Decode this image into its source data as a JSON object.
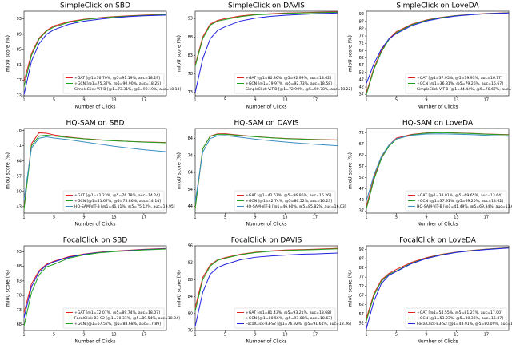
{
  "chart_data": [
    {
      "type": "line",
      "title": "SimpleClick on SBD",
      "x_label": "Number of Clicks",
      "y_label": "mIoU score (%)",
      "x": [
        1,
        2,
        3,
        4,
        5,
        7,
        9,
        11,
        13,
        15,
        17,
        20
      ],
      "xlim": [
        1,
        20
      ],
      "xticks": [
        1,
        5,
        9,
        13,
        17
      ],
      "ylim": [
        73,
        95
      ],
      "yticks": [
        73,
        77,
        81,
        85,
        89,
        93
      ],
      "legend": "lower right",
      "series": [
        {
          "name": "+GAT [@1=76.70%, @5=91.19%, auc=18.29]",
          "color": "#e02020",
          "values": [
            76.7,
            84,
            88,
            90,
            91.19,
            92.3,
            92.9,
            93.3,
            93.6,
            93.8,
            94,
            94.2
          ]
        },
        {
          "name": "+GCN [@1=75.37%, @5=90.90%, auc=18.25]",
          "color": "#20a020",
          "values": [
            75.37,
            83.5,
            87.7,
            89.8,
            90.9,
            92.1,
            92.8,
            93.2,
            93.5,
            93.7,
            93.9,
            94.1
          ]
        },
        {
          "name": "SimpleClick-ViT-B [@1=73.31%, @5=90.19%, auc=18.13]",
          "color": "#2020e0",
          "values": [
            73.31,
            82,
            86.5,
            89,
            90.19,
            91.6,
            92.4,
            92.9,
            93.3,
            93.6,
            93.8,
            94.0
          ]
        }
      ]
    },
    {
      "type": "line",
      "title": "SimpleClick on DAVIS",
      "x_label": "Number of Clicks",
      "y_label": "mIoU score (%)",
      "x": [
        1,
        2,
        3,
        4,
        5,
        7,
        9,
        11,
        13,
        15,
        17,
        20
      ],
      "xlim": [
        1,
        20
      ],
      "xticks": [
        1,
        5,
        9,
        13,
        17
      ],
      "ylim": [
        72,
        95
      ],
      "yticks": [
        73,
        78,
        83,
        88,
        93
      ],
      "legend": "lower right",
      "series": [
        {
          "name": "+GAT [@1=80.36%, @5=92.99%, auc=18.62]",
          "color": "#e02020",
          "values": [
            80.36,
            88,
            91.5,
            92.5,
            92.99,
            93.7,
            94.1,
            94.3,
            94.5,
            94.6,
            94.7,
            94.8
          ]
        },
        {
          "name": "+GCN [@1=79.97%, @5=92.73%, auc=18.58]",
          "color": "#20a020",
          "values": [
            79.97,
            87.5,
            91.2,
            92.3,
            92.73,
            93.5,
            94,
            94.2,
            94.4,
            94.5,
            94.6,
            94.7
          ]
        },
        {
          "name": "SimpleClick-ViT-B [@1=72.90%, @5=90.78%, auc=18.22]",
          "color": "#2020e0",
          "values": [
            72.9,
            82,
            87.5,
            89.8,
            90.78,
            92.3,
            93.1,
            93.6,
            93.9,
            94.1,
            94.3,
            94.5
          ]
        }
      ]
    },
    {
      "type": "line",
      "title": "SimpleClick on LoveDA",
      "x_label": "Number of Clicks",
      "y_label": "mIoU score (%)",
      "x": [
        1,
        2,
        3,
        4,
        5,
        7,
        9,
        11,
        13,
        15,
        17,
        20
      ],
      "xlim": [
        1,
        20
      ],
      "xticks": [
        1,
        5,
        9,
        13,
        17
      ],
      "ylim": [
        36,
        94
      ],
      "yticks": [
        37,
        42,
        47,
        52,
        57,
        62,
        67,
        72,
        77,
        82,
        87,
        92
      ],
      "legend": "lower right",
      "series": [
        {
          "name": "+GAT [@1=37.95%, @5=79.93%, auc=16.77]",
          "color": "#e02020",
          "values": [
            37.95,
            55,
            67,
            75,
            79.93,
            85,
            88,
            89.8,
            91,
            91.8,
            92.4,
            93
          ]
        },
        {
          "name": "+GCN [@1=36.81%, @5=79.26%, auc=16.67]",
          "color": "#20a020",
          "values": [
            36.81,
            54,
            66,
            74.5,
            79.26,
            84.6,
            87.7,
            89.6,
            90.9,
            91.7,
            92.3,
            92.9
          ]
        },
        {
          "name": "SimpleClick-ViT-B [@1=44.44%, @5=78.67%, auc=16.66]",
          "color": "#2020e0",
          "values": [
            44.44,
            58,
            68,
            75,
            78.67,
            84,
            87.3,
            89.3,
            90.7,
            91.6,
            92.2,
            92.8
          ]
        }
      ]
    },
    {
      "type": "line",
      "title": "HQ-SAM on SBD",
      "x_label": "Number of Clicks",
      "y_label": "mIoU score (%)",
      "x": [
        1,
        2,
        3,
        4,
        5,
        7,
        9,
        11,
        13,
        15,
        17,
        20
      ],
      "xlim": [
        1,
        20
      ],
      "xticks": [
        1,
        5,
        9,
        13,
        17
      ],
      "ylim": [
        40,
        79
      ],
      "yticks": [
        43,
        50,
        57,
        64,
        71,
        78
      ],
      "legend": "lower right",
      "series": [
        {
          "name": "+GAT [@1=42.23%, @5=76.78%, auc=14.24]",
          "color": "#e02020",
          "values": [
            42.23,
            72,
            77,
            76.78,
            76,
            75,
            74.3,
            73.8,
            73.4,
            73,
            72.8,
            72.5
          ]
        },
        {
          "name": "+GCN [@1=41.67%, @5=75.86%, auc=14.14]",
          "color": "#20a020",
          "values": [
            41.67,
            71,
            75.5,
            75.86,
            75.5,
            74.8,
            74.2,
            73.7,
            73.3,
            73,
            72.7,
            72.4
          ]
        },
        {
          "name": "HQ-SAM-ViT-B [@1=46.11%, @5=75.12%, auc=13.95]",
          "color": "#3a8fc0",
          "values": [
            46.11,
            70,
            74.5,
            75.12,
            74.6,
            73.8,
            72.8,
            71.8,
            70.8,
            70,
            69.2,
            68.3
          ]
        }
      ]
    },
    {
      "type": "line",
      "title": "HQ-SAM on DAVIS",
      "x_label": "Number of Clicks",
      "y_label": "mIoU score (%)",
      "x": [
        1,
        2,
        3,
        4,
        5,
        7,
        9,
        11,
        13,
        15,
        17,
        20
      ],
      "xlim": [
        1,
        20
      ],
      "xticks": [
        1,
        5,
        9,
        13,
        17
      ],
      "ylim": [
        40,
        90
      ],
      "yticks": [
        44,
        54,
        64,
        74,
        84
      ],
      "legend": "lower right",
      "series": [
        {
          "name": "+GAT [@1=42.67%, @5=86.86%, auc=16.26]",
          "color": "#e02020",
          "values": [
            42.67,
            78,
            85.5,
            86.8,
            86.86,
            86,
            85.2,
            84.6,
            84.1,
            83.8,
            83.5,
            83.2
          ]
        },
        {
          "name": "+GCN [@1=42.74%, @5=86.52%, auc=16.23]",
          "color": "#20a020",
          "values": [
            42.74,
            78,
            85.3,
            86.5,
            86.52,
            85.8,
            85.1,
            84.5,
            84,
            83.7,
            83.4,
            83.1
          ]
        },
        {
          "name": "HQ-SAM-ViT-B [@1=46.60%, @5=85.82%, auc=16.03]",
          "color": "#3a8fc0",
          "values": [
            46.6,
            76,
            84,
            85.7,
            85.82,
            84.8,
            83.7,
            82.8,
            82,
            81.3,
            80.6,
            79.8
          ]
        }
      ]
    },
    {
      "type": "line",
      "title": "HQ-SAM on LoveDA",
      "x_label": "Number of Clicks",
      "y_label": "mIoU score (%)",
      "x": [
        1,
        2,
        3,
        4,
        5,
        7,
        9,
        11,
        13,
        15,
        17,
        20
      ],
      "xlim": [
        1,
        20
      ],
      "xticks": [
        1,
        5,
        9,
        13,
        17
      ],
      "ylim": [
        36,
        74
      ],
      "yticks": [
        37,
        42,
        47,
        52,
        57,
        62,
        67,
        72
      ],
      "legend": "lower right",
      "series": [
        {
          "name": "+GAT [@1=38.91%, @5=69.65%, auc=13.64]",
          "color": "#e02020",
          "values": [
            38.91,
            52,
            61,
            66.5,
            69.65,
            71.3,
            72,
            72.2,
            72,
            71.8,
            71.5,
            71.2
          ]
        },
        {
          "name": "+GCN [@1=37.91%, @5=69.20%, auc=13.62]",
          "color": "#20a020",
          "values": [
            37.91,
            51,
            60.5,
            66,
            69.2,
            71.1,
            71.9,
            72.1,
            71.9,
            71.7,
            71.4,
            71.1
          ]
        },
        {
          "name": "HQ-SAM-ViT-B [@1=41.49%, @5=69.34%, auc=13.60]",
          "color": "#3a8fc0",
          "values": [
            41.49,
            53,
            61.5,
            66.5,
            69.34,
            70.9,
            71.5,
            71.6,
            71.4,
            71.2,
            70.9,
            70.5
          ]
        }
      ]
    },
    {
      "type": "line",
      "title": "FocalClick on SBD",
      "x_label": "Number of Clicks",
      "y_label": "mIoU score (%)",
      "x": [
        1,
        2,
        3,
        4,
        5,
        7,
        9,
        11,
        13,
        15,
        17,
        20
      ],
      "xlim": [
        1,
        20
      ],
      "xticks": [
        1,
        5,
        9,
        13,
        17
      ],
      "ylim": [
        66,
        95
      ],
      "yticks": [
        68,
        73,
        78,
        83,
        88,
        93
      ],
      "legend": "lower right",
      "series": [
        {
          "name": "+GAT [@1=72.07%, @5=89.74%, auc=18.07]",
          "color": "#e02020",
          "values": [
            72.07,
            82,
            86.5,
            88.7,
            89.74,
            91.3,
            92.2,
            92.8,
            93.2,
            93.5,
            93.8,
            94.1
          ]
        },
        {
          "name": "FocalClick-B3-S2 [@1=70.31%, @5=89.54%, auc=18.04]",
          "color": "#2020e0",
          "values": [
            70.31,
            81,
            86,
            88.4,
            89.54,
            91.1,
            92.1,
            92.7,
            93.1,
            93.4,
            93.7,
            94
          ]
        },
        {
          "name": "+GCN [@1=67.52%, @5=88.68%, auc=17.89]",
          "color": "#20a020",
          "values": [
            67.52,
            79,
            85,
            87.8,
            88.68,
            90.8,
            91.9,
            92.6,
            93,
            93.3,
            93.6,
            93.9
          ]
        }
      ]
    },
    {
      "type": "line",
      "title": "FocalClick on DAVIS",
      "x_label": "Number of Clicks",
      "y_label": "mIoU score (%)",
      "x": [
        1,
        2,
        3,
        4,
        5,
        7,
        9,
        11,
        13,
        15,
        17,
        20
      ],
      "xlim": [
        1,
        20
      ],
      "xticks": [
        1,
        5,
        9,
        13,
        17
      ],
      "ylim": [
        76,
        96
      ],
      "yticks": [
        76,
        80,
        84,
        88,
        92,
        96
      ],
      "legend": "lower right",
      "series": [
        {
          "name": "+GAT [@1=81.43%, @5=93.21%, auc=18.68]",
          "color": "#e02020",
          "values": [
            81.43,
            88.5,
            91.5,
            92.7,
            93.21,
            94,
            94.5,
            94.8,
            95,
            95.1,
            95.2,
            95.4
          ]
        },
        {
          "name": "+GCN [@1=80.56%, @5=93.08%, auc=18.63]",
          "color": "#20a020",
          "values": [
            80.56,
            88,
            91.2,
            92.6,
            93.08,
            93.9,
            94.4,
            94.7,
            94.9,
            95,
            95.1,
            95.3
          ]
        },
        {
          "name": "FocalClick-B3-S2 [@1=76.92%, @5=91.61%, auc=18.36]",
          "color": "#2020e0",
          "values": [
            76.92,
            85,
            89.3,
            90.9,
            91.61,
            92.7,
            93.3,
            93.6,
            93.8,
            94,
            94.1,
            94.3
          ]
        }
      ]
    },
    {
      "type": "line",
      "title": "FocalClick on LoveDA",
      "x_label": "Number of Clicks",
      "y_label": "mIoU score (%)",
      "x": [
        1,
        2,
        3,
        4,
        5,
        7,
        9,
        11,
        13,
        15,
        17,
        20
      ],
      "xlim": [
        1,
        20
      ],
      "xticks": [
        1,
        5,
        9,
        13,
        17
      ],
      "ylim": [
        48,
        94
      ],
      "yticks": [
        52,
        57,
        62,
        67,
        72,
        77,
        82,
        87,
        92
      ],
      "legend": "lower right",
      "series": [
        {
          "name": "+GAT [@1=54.55%, @5=81.21%, auc=17.00]",
          "color": "#e02020",
          "values": [
            54.55,
            68,
            75.5,
            79,
            81.21,
            85,
            87.6,
            89.4,
            90.6,
            91.5,
            92.2,
            93
          ]
        },
        {
          "name": "+GCN [@1=53.23%, @5=80.36%, auc=16.87]",
          "color": "#20a020",
          "values": [
            53.23,
            67,
            74.8,
            78.5,
            80.36,
            84.6,
            87.3,
            89.2,
            90.5,
            91.4,
            92.1,
            92.9
          ]
        },
        {
          "name": "FocalClick-B3-S2 [@1=48.91%, @5=80.09%, auc=16.79]",
          "color": "#2020e0",
          "values": [
            48.91,
            64,
            73.5,
            78,
            80.09,
            84.3,
            87.1,
            89,
            90.4,
            91.3,
            92,
            92.8
          ]
        }
      ]
    }
  ]
}
